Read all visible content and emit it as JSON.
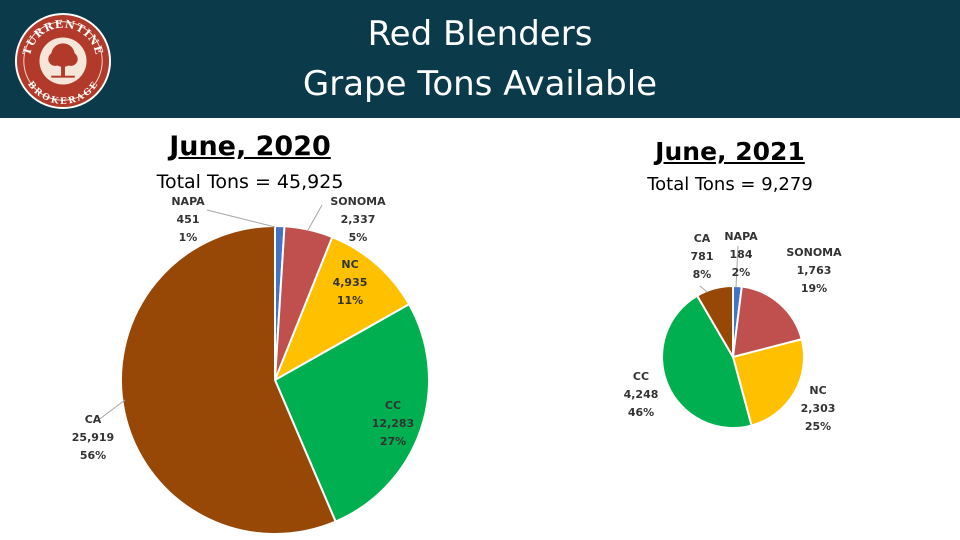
{
  "header": {
    "title_line1": "Red Blenders",
    "title_line2": "Grape Tons Available",
    "logo_text_top": "TURRENTINE",
    "logo_text_bottom": "BROKERAGE",
    "background_color": "#0b3a4a",
    "logo_color": "#b23a2a"
  },
  "chart_data": [
    {
      "type": "pie",
      "title": "June, 2020",
      "subtitle": "Total Tons = 45,925",
      "slices": [
        {
          "label": "NAPA",
          "value": 451,
          "value_text": "451",
          "pct_text": "1%",
          "color": "#4472c4"
        },
        {
          "label": "SONOMA",
          "value": 2337,
          "value_text": "2,337",
          "pct_text": "5%",
          "color": "#c0504d"
        },
        {
          "label": "NC",
          "value": 4935,
          "value_text": "4,935",
          "pct_text": "11%",
          "color": "#ffc000"
        },
        {
          "label": "CC",
          "value": 12283,
          "value_text": "12,283",
          "pct_text": "27%",
          "color": "#00b050"
        },
        {
          "label": "CA",
          "value": 25919,
          "value_text": "25,919",
          "pct_text": "56%",
          "color": "#974706"
        }
      ]
    },
    {
      "type": "pie",
      "title": "June, 2021",
      "subtitle": "Total Tons = 9,279",
      "slices": [
        {
          "label": "NAPA",
          "value": 184,
          "value_text": "184",
          "pct_text": "2%",
          "color": "#4472c4"
        },
        {
          "label": "SONOMA",
          "value": 1763,
          "value_text": "1,763",
          "pct_text": "19%",
          "color": "#c0504d"
        },
        {
          "label": "NC",
          "value": 2303,
          "value_text": "2,303",
          "pct_text": "25%",
          "color": "#ffc000"
        },
        {
          "label": "CC",
          "value": 4248,
          "value_text": "4,248",
          "pct_text": "46%",
          "color": "#00b050"
        },
        {
          "label": "CA",
          "value": 781,
          "value_text": "781",
          "pct_text": "8%",
          "color": "#974706"
        }
      ]
    }
  ]
}
